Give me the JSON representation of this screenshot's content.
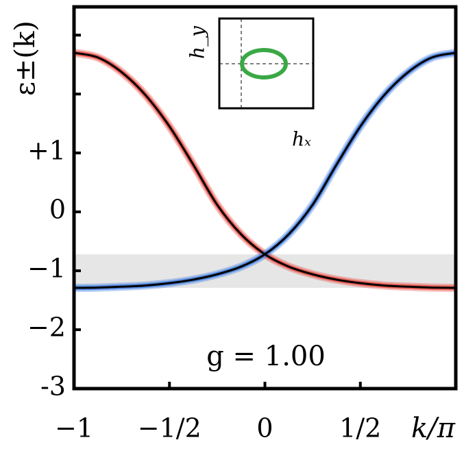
{
  "chart_data": {
    "type": "line",
    "y_label": "ε±(k)",
    "x_label": "k/π",
    "annotation": "g = 1.00",
    "inset_x_label": "hₓ",
    "inset_y_label": "h_y",
    "x": [
      -1,
      -0.875,
      -0.75,
      -0.625,
      -0.5,
      -0.375,
      -0.25,
      -0.125,
      0,
      0.125,
      0.25,
      0.375,
      0.5,
      0.625,
      0.75,
      0.875,
      1
    ],
    "series": [
      {
        "color": "#e8453c",
        "values": [
          2.7,
          2.62,
          2.37,
          1.98,
          1.45,
          0.8,
          0.12,
          -0.38,
          -0.72,
          -0.93,
          -1.06,
          -1.15,
          -1.21,
          -1.25,
          -1.27,
          -1.285,
          -1.29
        ]
      },
      {
        "color": "#3a78e0",
        "values": [
          -1.29,
          -1.285,
          -1.27,
          -1.25,
          -1.21,
          -1.15,
          -1.06,
          -0.93,
          -0.72,
          -0.38,
          0.12,
          0.8,
          1.45,
          1.98,
          2.37,
          2.62,
          2.7
        ]
      }
    ],
    "shaded_band": [
      -1.29,
      -0.72
    ],
    "xlim": [
      -1,
      1
    ],
    "ylim": [
      -3,
      3.48
    ],
    "xticks": [
      {
        "value": -1,
        "label": "−1"
      },
      {
        "value": -0.5,
        "label": "−1/2"
      },
      0,
      {
        "value": 0.5,
        "label": "1/2"
      }
    ],
    "yticks": [
      -3,
      {
        "value": -2,
        "label": "−2"
      },
      {
        "value": -1,
        "label": "−1"
      },
      0,
      {
        "value": 1,
        "label": "+1"
      }
    ],
    "minor_yticks": [
      2,
      3
    ]
  }
}
